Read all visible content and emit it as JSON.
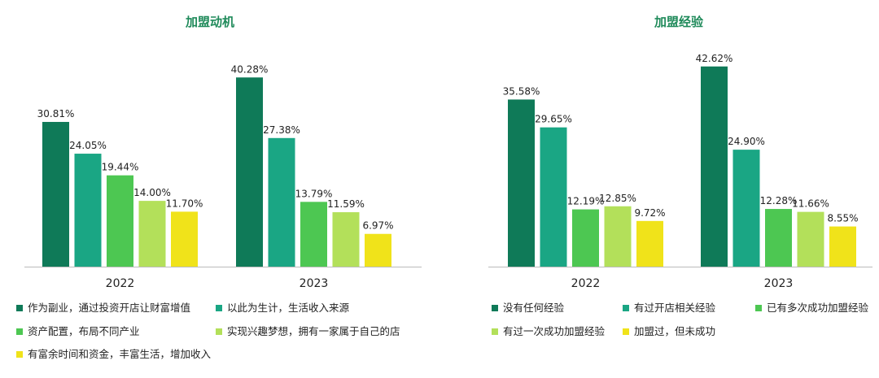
{
  "colors": {
    "title": "#1f8a5a",
    "axis": "#bbbbbb",
    "series": [
      "#0f7a58",
      "#1aa684",
      "#4dc752",
      "#b3e05a",
      "#f0e31a"
    ]
  },
  "chart_data": [
    {
      "type": "bar",
      "title": "加盟动机",
      "categories": [
        "2022",
        "2023"
      ],
      "ylim": [
        0,
        45
      ],
      "grid": false,
      "legend_position": "bottom",
      "series": [
        {
          "name": "作为副业，通过投资开店让财富增值",
          "values": [
            30.81,
            40.28
          ],
          "labels": [
            "30.81%",
            "40.28%"
          ]
        },
        {
          "name": "以此为生计，生活收入来源",
          "values": [
            24.05,
            27.38
          ],
          "labels": [
            "24.05%",
            "27.38%"
          ]
        },
        {
          "name": "资产配置，布局不同产业",
          "values": [
            19.44,
            13.79
          ],
          "labels": [
            "19.44%",
            "13.79%"
          ]
        },
        {
          "name": "实现兴趣梦想，拥有一家属于自己的店",
          "values": [
            14.0,
            11.59
          ],
          "labels": [
            "14.00%",
            "11.59%"
          ]
        },
        {
          "name": "有富余时间和资金，丰富生活，增加收入",
          "values": [
            11.7,
            6.97
          ],
          "labels": [
            "11.70%",
            "6.97%"
          ]
        }
      ]
    },
    {
      "type": "bar",
      "title": "加盟经验",
      "categories": [
        "2022",
        "2023"
      ],
      "ylim": [
        0,
        45
      ],
      "grid": false,
      "legend_position": "bottom",
      "series": [
        {
          "name": "没有任何经验",
          "values": [
            35.58,
            42.62
          ],
          "labels": [
            "35.58%",
            "42.62%"
          ]
        },
        {
          "name": "有过开店相关经验",
          "values": [
            29.65,
            24.9
          ],
          "labels": [
            "29.65%",
            "24.90%"
          ]
        },
        {
          "name": "已有多次成功加盟经验",
          "values": [
            12.19,
            12.28
          ],
          "labels": [
            "12.19%",
            "12.28%"
          ]
        },
        {
          "name": "有过一次成功加盟经验",
          "values": [
            12.85,
            11.66
          ],
          "labels": [
            "12.85%",
            "11.66%"
          ]
        },
        {
          "name": "加盟过，但未成功",
          "values": [
            9.72,
            8.55
          ],
          "labels": [
            "9.72%",
            "8.55%"
          ]
        }
      ]
    }
  ]
}
